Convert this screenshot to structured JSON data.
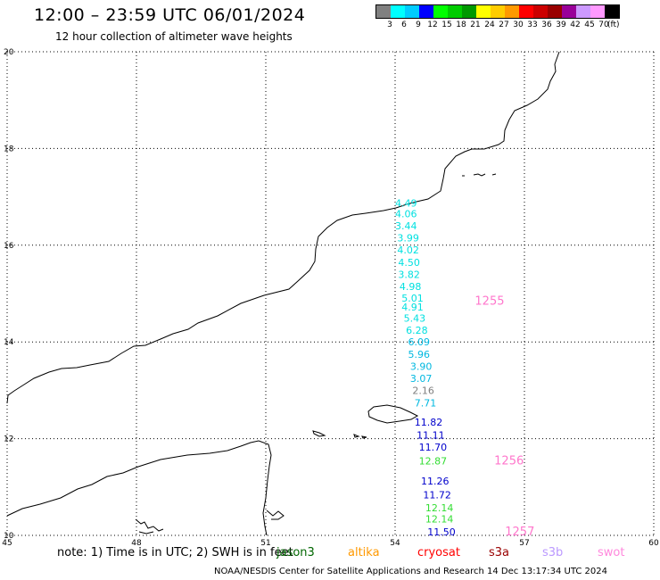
{
  "header": {
    "title": "12:00 – 23:59 UTC 06/01/2024",
    "subtitle": "12 hour collection of altimeter wave heights"
  },
  "legend": {
    "unit": "(ft)",
    "colors": [
      "#808080",
      "#00ffff",
      "#00ccff",
      "#0000ff",
      "#00ff00",
      "#00cc00",
      "#009900",
      "#ffff00",
      "#ffcc00",
      "#ff9900",
      "#ff0000",
      "#cc0000",
      "#990000",
      "#990099",
      "#cc99ff",
      "#ff99ff",
      "#000000"
    ],
    "labels": [
      "3",
      "6",
      "9",
      "12",
      "15",
      "18",
      "21",
      "24",
      "27",
      "30",
      "33",
      "36",
      "39",
      "42",
      "45",
      "70"
    ]
  },
  "map": {
    "lon_range": [
      45,
      60
    ],
    "lat_range": [
      10,
      20
    ],
    "lon_ticks": [
      "45",
      "48",
      "51",
      "54",
      "57",
      "60"
    ],
    "lat_ticks": [
      "20",
      "18",
      "16",
      "14",
      "12",
      "10"
    ],
    "observations": [
      {
        "value": "4.49",
        "lon": 54.0,
        "lat": 16.8,
        "color": "#00e0e0"
      },
      {
        "value": "4.06",
        "lon": 54.0,
        "lat": 16.58,
        "color": "#00e0e0"
      },
      {
        "value": "3.44",
        "lon": 54.0,
        "lat": 16.33,
        "color": "#00e0e0"
      },
      {
        "value": "3.99",
        "lon": 54.05,
        "lat": 16.08,
        "color": "#00e0e0"
      },
      {
        "value": "4.02",
        "lon": 54.05,
        "lat": 15.83,
        "color": "#00e0e0"
      },
      {
        "value": "4.50",
        "lon": 54.07,
        "lat": 15.57,
        "color": "#00e0e0"
      },
      {
        "value": "3.82",
        "lon": 54.07,
        "lat": 15.32,
        "color": "#00e0e0"
      },
      {
        "value": "4.98",
        "lon": 54.1,
        "lat": 15.07,
        "color": "#00e0e0"
      },
      {
        "value": "5.01",
        "lon": 54.15,
        "lat": 14.83,
        "color": "#00e0e0"
      },
      {
        "value": "4.91",
        "lon": 54.15,
        "lat": 14.65,
        "color": "#00e0e0"
      },
      {
        "value": "5.43",
        "lon": 54.2,
        "lat": 14.42,
        "color": "#00e0e0"
      },
      {
        "value": "6.28",
        "lon": 54.25,
        "lat": 14.17,
        "color": "#00e0e0"
      },
      {
        "value": "6.09",
        "lon": 54.3,
        "lat": 13.93,
        "color": "#00b8e0"
      },
      {
        "value": "5.96",
        "lon": 54.3,
        "lat": 13.67,
        "color": "#00b8e0"
      },
      {
        "value": "3.90",
        "lon": 54.35,
        "lat": 13.42,
        "color": "#00b8e0"
      },
      {
        "value": "3.07",
        "lon": 54.35,
        "lat": 13.17,
        "color": "#00b8e0"
      },
      {
        "value": "2.16",
        "lon": 54.4,
        "lat": 12.92,
        "color": "#808080"
      },
      {
        "value": "7.71",
        "lon": 54.45,
        "lat": 12.67,
        "color": "#00b8e0"
      },
      {
        "value": "11.82",
        "lon": 54.45,
        "lat": 12.27,
        "color": "#0000cc"
      },
      {
        "value": "11.11",
        "lon": 54.5,
        "lat": 12.0,
        "color": "#0000cc"
      },
      {
        "value": "11.70",
        "lon": 54.55,
        "lat": 11.75,
        "color": "#0000cc"
      },
      {
        "value": "12.87",
        "lon": 54.55,
        "lat": 11.47,
        "color": "#33dd33"
      },
      {
        "value": "11.26",
        "lon": 54.6,
        "lat": 11.05,
        "color": "#0000cc"
      },
      {
        "value": "11.72",
        "lon": 54.65,
        "lat": 10.77,
        "color": "#0000cc"
      },
      {
        "value": "12.14",
        "lon": 54.7,
        "lat": 10.5,
        "color": "#33dd33"
      },
      {
        "value": "12.14",
        "lon": 54.7,
        "lat": 10.27,
        "color": "#33dd33"
      },
      {
        "value": "11.50",
        "lon": 54.75,
        "lat": 10.0,
        "color": "#0000cc"
      }
    ],
    "passes": [
      {
        "id": "1255",
        "lon": 55.85,
        "lat": 14.77,
        "color": "#ff77cc"
      },
      {
        "id": "1256",
        "lon": 56.3,
        "lat": 11.47,
        "color": "#ff77cc"
      },
      {
        "id": "1257",
        "lon": 56.55,
        "lat": 10.0,
        "color": "#ff77cc"
      }
    ]
  },
  "footer_note": {
    "text": "note:  1) Time is in UTC; 2) SWH is in feet",
    "satellites": [
      {
        "name": "jason3",
        "color": "#006600"
      },
      {
        "name": "altika",
        "color": "#ff9900"
      },
      {
        "name": "cryosat",
        "color": "#ff0000"
      },
      {
        "name": "s3a",
        "color": "#990000"
      },
      {
        "name": "s3b",
        "color": "#bb99ff"
      },
      {
        "name": "swot",
        "color": "#ff88dd"
      }
    ]
  },
  "credit": "NOAA/NESDIS Center for Satellite Applications and Research    14 Dec 13:17:34 UTC 2024"
}
